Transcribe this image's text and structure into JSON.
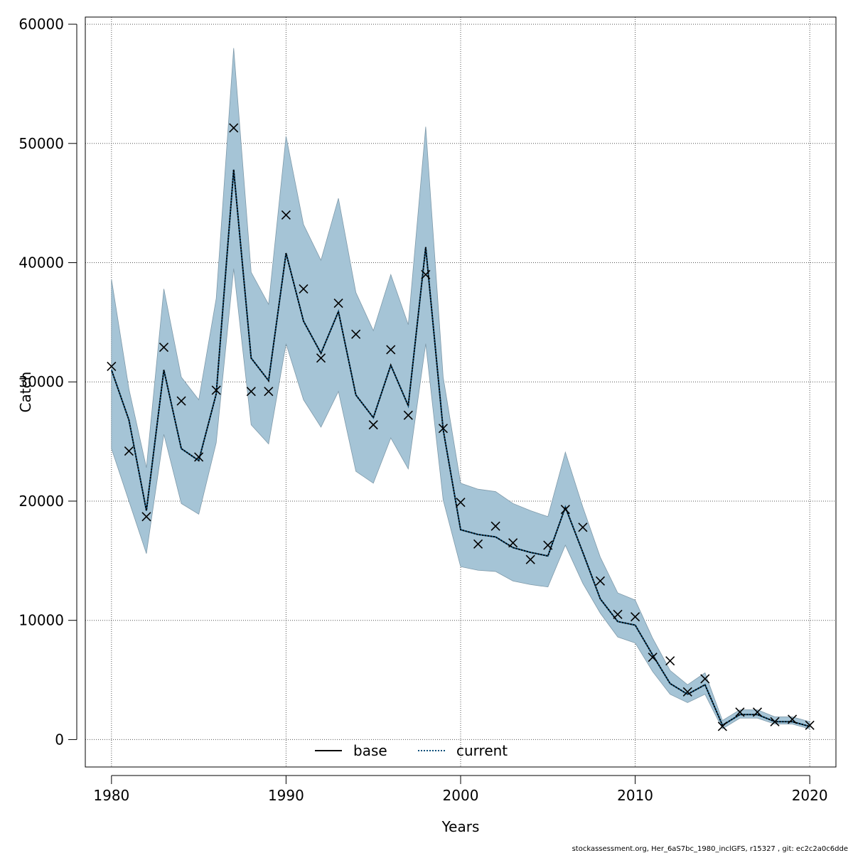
{
  "chart_data": {
    "type": "line",
    "title": "",
    "xlabel": "Years",
    "ylabel": "Catch",
    "xlim": [
      1978.5,
      2021.5
    ],
    "ylim": [
      -2300,
      60600
    ],
    "x_ticks": [
      1980,
      1990,
      2000,
      2010,
      2020
    ],
    "y_ticks": [
      0,
      10000,
      20000,
      30000,
      40000,
      50000,
      60000
    ],
    "x_tick_labels": [
      "1980",
      "1990",
      "2000",
      "2010",
      "2020"
    ],
    "y_tick_labels": [
      "0",
      "10000",
      "20000",
      "30000",
      "40000",
      "50000",
      "60000"
    ],
    "grid": true,
    "legend_position": "bottom-center",
    "colors": {
      "band": "#a5c4d6",
      "band_edge": "#7f9aaa",
      "current": "#0b4f7a",
      "base": "#000000"
    },
    "x": [
      1980,
      1981,
      1982,
      1983,
      1984,
      1985,
      1986,
      1987,
      1988,
      1989,
      1990,
      1991,
      1992,
      1993,
      1994,
      1995,
      1996,
      1997,
      1998,
      1999,
      2000,
      2001,
      2002,
      2003,
      2004,
      2005,
      2006,
      2007,
      2008,
      2009,
      2010,
      2011,
      2012,
      2013,
      2014,
      2015,
      2016,
      2017,
      2018,
      2019,
      2020
    ],
    "series": [
      {
        "name": "base",
        "style": "solid",
        "values": [
          31000,
          26800,
          19200,
          31000,
          24400,
          23400,
          29000,
          47800,
          32000,
          30100,
          40800,
          35100,
          32400,
          35900,
          28900,
          27000,
          31400,
          28000,
          41300,
          26000,
          17600,
          17200,
          17000,
          16100,
          15700,
          15400,
          19500,
          15700,
          11800,
          9900,
          9600,
          7100,
          4700,
          3800,
          4600,
          1200,
          2100,
          2100,
          1500,
          1500,
          1100
        ]
      },
      {
        "name": "current",
        "style": "dotted",
        "values": [
          31000,
          26800,
          19200,
          31000,
          24400,
          23400,
          29000,
          47800,
          32000,
          30100,
          40800,
          35100,
          32400,
          35900,
          28900,
          27000,
          31400,
          28000,
          41300,
          26000,
          17600,
          17200,
          17000,
          16100,
          15700,
          15400,
          19500,
          15700,
          11800,
          9900,
          9600,
          7100,
          4700,
          3800,
          4600,
          1200,
          2100,
          2100,
          1500,
          1500,
          1100
        ]
      }
    ],
    "band": {
      "upper": [
        38600,
        29400,
        22800,
        37800,
        30400,
        28500,
        37000,
        58000,
        39200,
        36500,
        50600,
        43200,
        40200,
        45400,
        37500,
        34300,
        39000,
        34800,
        51400,
        30400,
        21500,
        21000,
        20800,
        19800,
        19200,
        18700,
        24100,
        19500,
        15300,
        12300,
        11700,
        8500,
        5800,
        4600,
        5600,
        1600,
        2500,
        2500,
        1900,
        1900,
        1500
      ],
      "lower": [
        24400,
        20000,
        15600,
        25600,
        19800,
        18900,
        24900,
        39500,
        26400,
        24800,
        33200,
        28500,
        26200,
        29200,
        22500,
        21500,
        25300,
        22700,
        33200,
        20100,
        14500,
        14200,
        14100,
        13300,
        13000,
        12800,
        16300,
        13100,
        10600,
        8600,
        8100,
        5700,
        3800,
        3100,
        3800,
        900,
        1800,
        1800,
        1300,
        1300,
        900
      ]
    },
    "observed": {
      "name": "observed",
      "values": [
        31300,
        24200,
        18700,
        32900,
        28400,
        23700,
        29300,
        51300,
        29200,
        29200,
        44000,
        37800,
        32000,
        36600,
        34000,
        26400,
        32700,
        27200,
        39000,
        26100,
        19900,
        16400,
        17900,
        16500,
        15100,
        16300,
        19300,
        17800,
        13300,
        10500,
        10300,
        6900,
        6600,
        4000,
        5100,
        1100,
        2300,
        2300,
        1500,
        1700,
        1200
      ]
    },
    "legend": [
      {
        "label": "base",
        "series": "base"
      },
      {
        "label": "current",
        "series": "current"
      }
    ],
    "footer": "stockassessment.org, Her_6aS7bc_1980_inclGFS, r15327 , git: ec2c2a0c6dde"
  }
}
